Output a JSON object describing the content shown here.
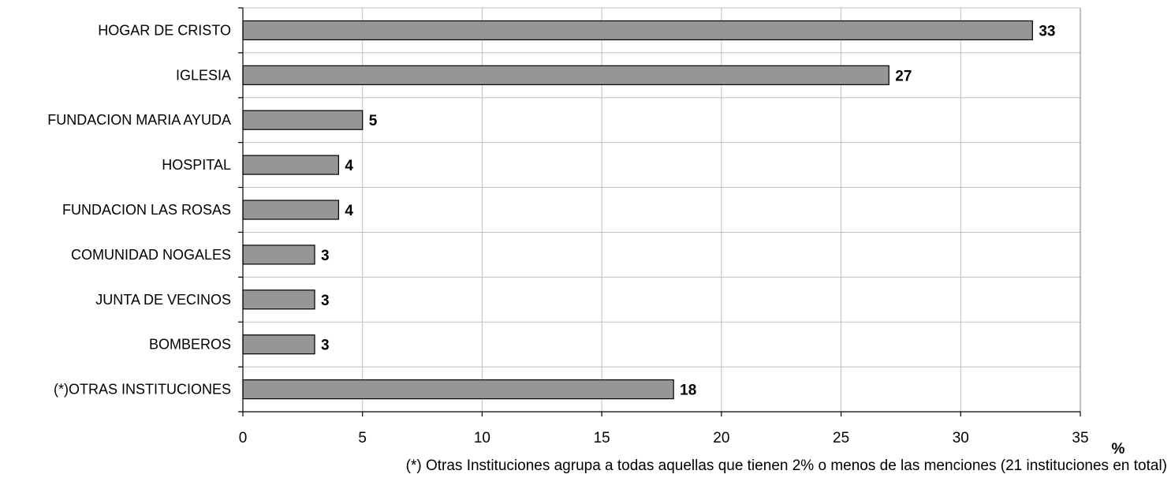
{
  "chart_data": {
    "type": "bar",
    "orientation": "horizontal",
    "categories": [
      "HOGAR DE CRISTO",
      "IGLESIA",
      "FUNDACION MARIA AYUDA",
      "HOSPITAL",
      "FUNDACION LAS ROSAS",
      "COMUNIDAD NOGALES",
      "JUNTA DE VECINOS",
      "BOMBEROS",
      "(*)OTRAS INSTITUCIONES"
    ],
    "values": [
      33,
      27,
      5,
      4,
      4,
      3,
      3,
      3,
      18
    ],
    "xlim": [
      0,
      35
    ],
    "x_ticks": [
      "0",
      "5",
      "10",
      "15",
      "20",
      "25",
      "30",
      "35"
    ],
    "x_unit": "%",
    "grid": true,
    "bar_color": "#969696",
    "footnote": "(*) Otras Instituciones agrupa a todas aquellas que tienen 2% o menos de las menciones (21 instituciones en total)"
  }
}
